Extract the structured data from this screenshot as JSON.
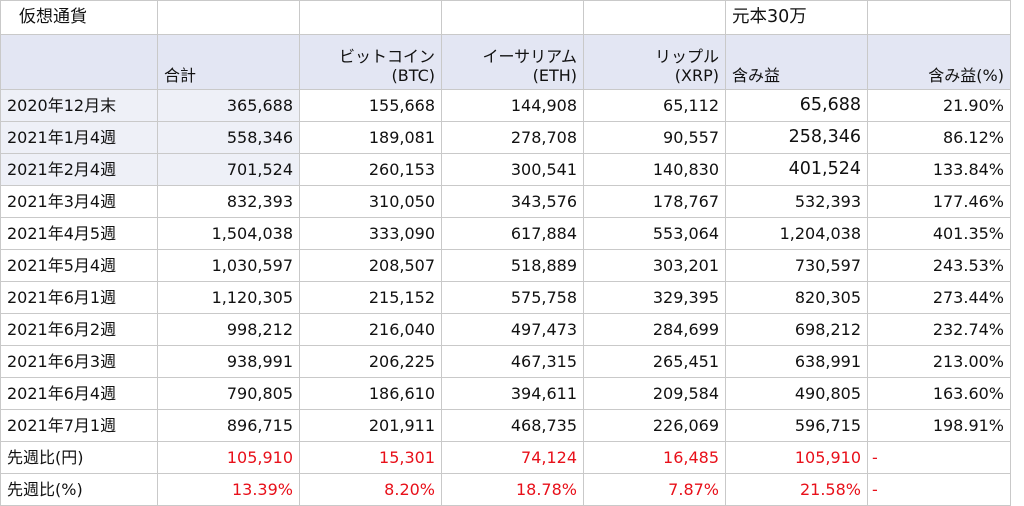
{
  "sheet": {
    "title": "仮想通貨",
    "note": "元本30万",
    "headers": {
      "total": "合計",
      "btc_line1": "ビットコイン",
      "btc_line2": "(BTC)",
      "eth_line1": "イーサリアム",
      "eth_line2": "(ETH)",
      "xrp_line1": "リップル",
      "xrp_line2": "(XRP)",
      "gain": "含み益",
      "gain_pct": "含み益(%)"
    },
    "rows": [
      {
        "period": "2020年12月末",
        "total": "365,688",
        "btc": "155,668",
        "eth": "144,908",
        "xrp": "65,112",
        "gain": "65,688",
        "pct": "21.90%"
      },
      {
        "period": "2021年1月4週",
        "total": "558,346",
        "btc": "189,081",
        "eth": "278,708",
        "xrp": "90,557",
        "gain": "258,346",
        "pct": "86.12%"
      },
      {
        "period": "2021年2月4週",
        "total": "701,524",
        "btc": "260,153",
        "eth": "300,541",
        "xrp": "140,830",
        "gain": "401,524",
        "pct": "133.84%"
      },
      {
        "period": "2021年3月4週",
        "total": "832,393",
        "btc": "310,050",
        "eth": "343,576",
        "xrp": "178,767",
        "gain": "532,393",
        "pct": "177.46%"
      },
      {
        "period": "2021年4月5週",
        "total": "1,504,038",
        "btc": "333,090",
        "eth": "617,884",
        "xrp": "553,064",
        "gain": "1,204,038",
        "pct": "401.35%"
      },
      {
        "period": "2021年5月4週",
        "total": "1,030,597",
        "btc": "208,507",
        "eth": "518,889",
        "xrp": "303,201",
        "gain": "730,597",
        "pct": "243.53%"
      },
      {
        "period": "2021年6月1週",
        "total": "1,120,305",
        "btc": "215,152",
        "eth": "575,758",
        "xrp": "329,395",
        "gain": "820,305",
        "pct": "273.44%"
      },
      {
        "period": "2021年6月2週",
        "total": "998,212",
        "btc": "216,040",
        "eth": "497,473",
        "xrp": "284,699",
        "gain": "698,212",
        "pct": "232.74%"
      },
      {
        "period": "2021年6月3週",
        "total": "938,991",
        "btc": "206,225",
        "eth": "467,315",
        "xrp": "265,451",
        "gain": "638,991",
        "pct": "213.00%"
      },
      {
        "period": "2021年6月4週",
        "total": "790,805",
        "btc": "186,610",
        "eth": "394,611",
        "xrp": "209,584",
        "gain": "490,805",
        "pct": "163.60%"
      },
      {
        "period": "2021年7月1週",
        "total": "896,715",
        "btc": "201,911",
        "eth": "468,735",
        "xrp": "226,069",
        "gain": "596,715",
        "pct": "198.91%"
      }
    ],
    "diff_yen": {
      "label": "先週比(円)",
      "total": "105,910",
      "btc": "15,301",
      "eth": "74,124",
      "xrp": "16,485",
      "gain": "105,910",
      "pct": "-"
    },
    "diff_pct": {
      "label": "先週比(%)",
      "total": "13.39%",
      "btc": "8.20%",
      "eth": "18.78%",
      "xrp": "7.87%",
      "gain": "21.58%",
      "pct": "-"
    }
  },
  "colors": {
    "header_bg": "#e3e6f3",
    "label_shade": "#eef0f7",
    "negative_red": "#e8101a",
    "grid": "#c9c9c9"
  }
}
